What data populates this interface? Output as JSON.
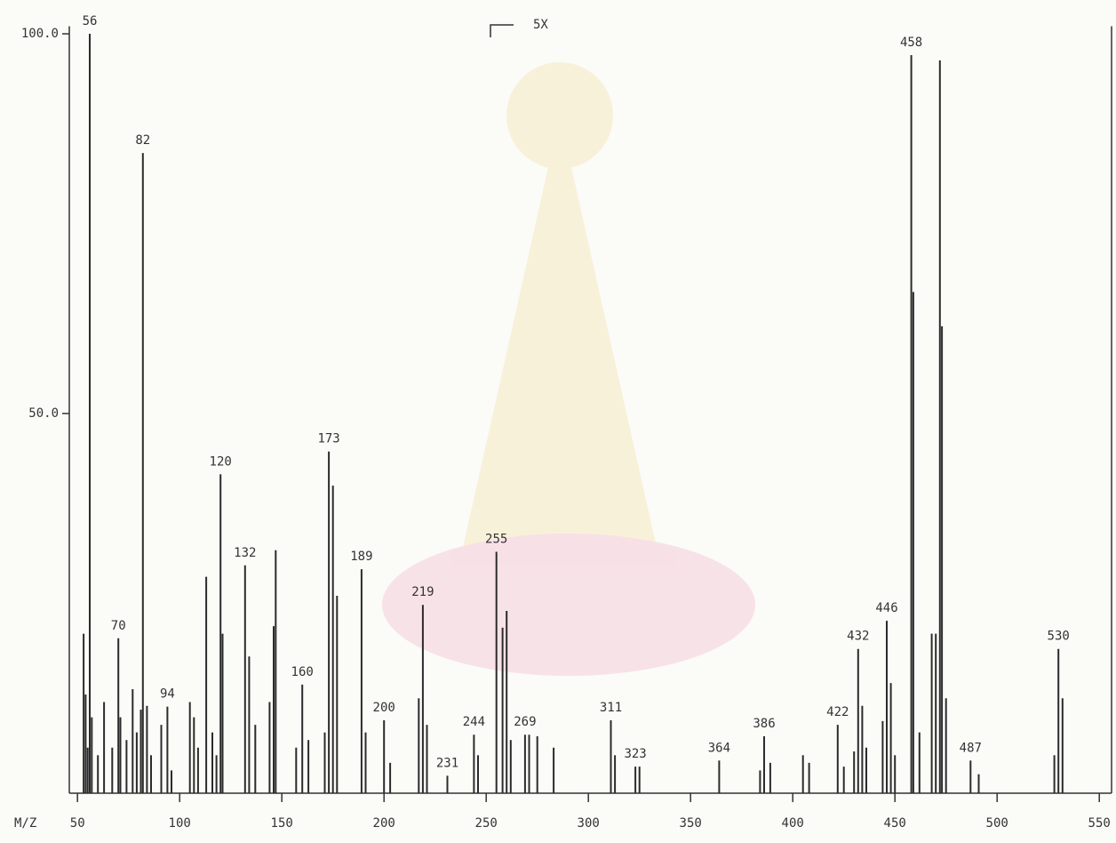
{
  "chart_data": {
    "type": "stem",
    "x_label": "M/Z",
    "annotation": "5X",
    "color": "#2b2b2b",
    "xlim": [
      46,
      556
    ],
    "ylim": [
      0,
      101
    ],
    "xticks": [
      50,
      100,
      150,
      200,
      250,
      300,
      350,
      400,
      450,
      500,
      550
    ],
    "yticks": [
      {
        "value": 100,
        "label": "100.0"
      },
      {
        "value": 50,
        "label": "50.0"
      }
    ],
    "x": [
      53,
      54,
      55,
      56,
      57,
      60,
      63,
      67,
      70,
      71,
      74,
      77,
      79,
      81,
      82,
      84,
      86,
      91,
      94,
      96,
      105,
      107,
      109,
      113,
      116,
      118,
      120,
      121,
      132,
      134,
      137,
      144,
      146,
      147,
      157,
      160,
      163,
      171,
      173,
      175,
      177,
      189,
      191,
      200,
      203,
      217,
      219,
      221,
      231,
      244,
      246,
      255,
      258,
      260,
      262,
      269,
      271,
      275,
      283,
      311,
      313,
      323,
      325,
      364,
      384,
      386,
      389,
      405,
      408,
      422,
      425,
      430,
      432,
      434,
      436,
      444,
      446,
      448,
      450,
      458,
      459,
      462,
      468,
      470,
      472,
      473,
      475,
      487,
      491,
      528,
      530,
      532
    ],
    "values": [
      21,
      13,
      6,
      100,
      10,
      5,
      12,
      6,
      20.4,
      10,
      7,
      13.7,
      8,
      11,
      84.3,
      11.5,
      5,
      9,
      11.4,
      3,
      12,
      10,
      6,
      28.5,
      8,
      5,
      42,
      21,
      30,
      18,
      9,
      12,
      22,
      32,
      6,
      14.3,
      7,
      8,
      45,
      40.5,
      26,
      29.5,
      8,
      9.6,
      4,
      12.5,
      24.8,
      9,
      2.3,
      7.7,
      5,
      31.8,
      21.8,
      24,
      7,
      7.7,
      7.7,
      7.5,
      6,
      9.6,
      5,
      3.5,
      3.5,
      4.3,
      3,
      7.5,
      4,
      5,
      4,
      9,
      3.5,
      5.5,
      19,
      11.5,
      6,
      9.5,
      22.7,
      14.5,
      5,
      97.2,
      66,
      8,
      21,
      21,
      96.5,
      61.5,
      12.5,
      4.3,
      2.5,
      5,
      19,
      12.5
    ],
    "peak_labels": [
      null,
      null,
      null,
      "56",
      null,
      null,
      null,
      null,
      "70",
      null,
      null,
      null,
      null,
      null,
      "82",
      null,
      null,
      null,
      "94",
      null,
      null,
      null,
      null,
      null,
      null,
      null,
      "120",
      null,
      "132",
      null,
      null,
      null,
      null,
      null,
      null,
      "160",
      null,
      null,
      "173",
      null,
      null,
      "189",
      null,
      "200",
      null,
      null,
      "219",
      null,
      "231",
      "244",
      null,
      "255",
      null,
      null,
      null,
      "269",
      null,
      null,
      null,
      "311",
      null,
      "323",
      null,
      "364",
      null,
      "386",
      null,
      null,
      null,
      "422",
      null,
      null,
      "432",
      null,
      null,
      null,
      "446",
      null,
      null,
      "458",
      null,
      null,
      null,
      null,
      null,
      null,
      null,
      "487",
      null,
      null,
      "530",
      null
    ]
  }
}
